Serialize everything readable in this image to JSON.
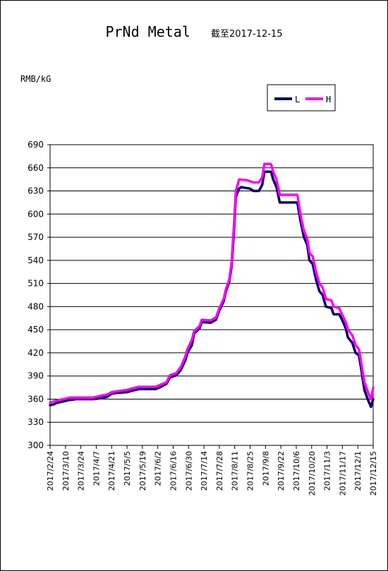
{
  "chart_data": {
    "type": "line",
    "title": "PrNd Metal",
    "subtitle": "截至2017-12-15",
    "ylabel": "RMB/kG",
    "ylim": [
      300,
      690
    ],
    "yticks": [
      300,
      330,
      360,
      390,
      420,
      450,
      480,
      510,
      540,
      570,
      600,
      630,
      660,
      690
    ],
    "xlim": [
      "2017-02-24",
      "2017-12-15"
    ],
    "xticks": [
      "2017/2/24",
      "2017/3/10",
      "2017/3/24",
      "2017/4/7",
      "2017/4/21",
      "2017/5/5",
      "2017/5/19",
      "2017/6/2",
      "2017/6/16",
      "2017/6/30",
      "2017/7/14",
      "2017/7/28",
      "2017/8/11",
      "2017/8/25",
      "2017/9/8",
      "2017/9/22",
      "2017/10/6",
      "2017/10/20",
      "2017/11/3",
      "2017/11/17",
      "2017/12/1",
      "2017/12/15"
    ],
    "grid": true,
    "legend_position": "top-right",
    "series": [
      {
        "name": "L",
        "color": "#000066",
        "points": [
          [
            "2017-02-24",
            352
          ],
          [
            "2017-02-27",
            353
          ],
          [
            "2017-03-02",
            355
          ],
          [
            "2017-03-08",
            357
          ],
          [
            "2017-03-14",
            359
          ],
          [
            "2017-03-20",
            360
          ],
          [
            "2017-04-04",
            360
          ],
          [
            "2017-04-10",
            361
          ],
          [
            "2017-04-17",
            363
          ],
          [
            "2017-04-21",
            367
          ],
          [
            "2017-04-25",
            368
          ],
          [
            "2017-05-05",
            369
          ],
          [
            "2017-05-10",
            371
          ],
          [
            "2017-05-16",
            373
          ],
          [
            "2017-05-31",
            373
          ],
          [
            "2017-06-05",
            376
          ],
          [
            "2017-06-10",
            380
          ],
          [
            "2017-06-13",
            388
          ],
          [
            "2017-06-19",
            391
          ],
          [
            "2017-06-23",
            398
          ],
          [
            "2017-06-27",
            410
          ],
          [
            "2017-06-29",
            420
          ],
          [
            "2017-07-03",
            430
          ],
          [
            "2017-07-05",
            445
          ],
          [
            "2017-07-10",
            452
          ],
          [
            "2017-07-12",
            460
          ],
          [
            "2017-07-20",
            459
          ],
          [
            "2017-07-25",
            463
          ],
          [
            "2017-07-28",
            475
          ],
          [
            "2017-08-01",
            487
          ],
          [
            "2017-08-03",
            500
          ],
          [
            "2017-08-06",
            512
          ],
          [
            "2017-08-08",
            530
          ],
          [
            "2017-08-10",
            570
          ],
          [
            "2017-08-12",
            622
          ],
          [
            "2017-08-15",
            633
          ],
          [
            "2017-08-17",
            635
          ],
          [
            "2017-08-25",
            633
          ],
          [
            "2017-08-28",
            630
          ],
          [
            "2017-09-02",
            630
          ],
          [
            "2017-09-05",
            638
          ],
          [
            "2017-09-07",
            655
          ],
          [
            "2017-09-13",
            655
          ],
          [
            "2017-09-15",
            645
          ],
          [
            "2017-09-18",
            635
          ],
          [
            "2017-09-21",
            615
          ],
          [
            "2017-10-07",
            615
          ],
          [
            "2017-10-10",
            590
          ],
          [
            "2017-10-13",
            570
          ],
          [
            "2017-10-16",
            560
          ],
          [
            "2017-10-18",
            540
          ],
          [
            "2017-10-21",
            535
          ],
          [
            "2017-10-24",
            515
          ],
          [
            "2017-10-27",
            500
          ],
          [
            "2017-10-30",
            495
          ],
          [
            "2017-11-02",
            480
          ],
          [
            "2017-11-07",
            478
          ],
          [
            "2017-11-09",
            470
          ],
          [
            "2017-11-14",
            470
          ],
          [
            "2017-11-16",
            465
          ],
          [
            "2017-11-20",
            452
          ],
          [
            "2017-11-22",
            440
          ],
          [
            "2017-11-26",
            433
          ],
          [
            "2017-11-29",
            420
          ],
          [
            "2017-12-02",
            417
          ],
          [
            "2017-12-04",
            400
          ],
          [
            "2017-12-07",
            372
          ],
          [
            "2017-12-10",
            360
          ],
          [
            "2017-12-13",
            350
          ],
          [
            "2017-12-15",
            360
          ]
        ]
      },
      {
        "name": "H",
        "color": "#ff00ff",
        "points": [
          [
            "2017-02-24",
            355
          ],
          [
            "2017-02-27",
            357
          ],
          [
            "2017-03-02",
            358
          ],
          [
            "2017-03-08",
            360
          ],
          [
            "2017-03-14",
            362
          ],
          [
            "2017-03-20",
            362
          ],
          [
            "2017-04-04",
            362
          ],
          [
            "2017-04-10",
            364
          ],
          [
            "2017-04-17",
            366
          ],
          [
            "2017-04-21",
            369
          ],
          [
            "2017-04-25",
            370
          ],
          [
            "2017-05-05",
            372
          ],
          [
            "2017-05-10",
            374
          ],
          [
            "2017-05-16",
            376
          ],
          [
            "2017-05-31",
            376
          ],
          [
            "2017-06-05",
            379
          ],
          [
            "2017-06-10",
            382
          ],
          [
            "2017-06-13",
            391
          ],
          [
            "2017-06-19",
            394
          ],
          [
            "2017-06-23",
            402
          ],
          [
            "2017-06-27",
            415
          ],
          [
            "2017-06-29",
            425
          ],
          [
            "2017-07-03",
            437
          ],
          [
            "2017-07-05",
            448
          ],
          [
            "2017-07-10",
            455
          ],
          [
            "2017-07-12",
            463
          ],
          [
            "2017-07-20",
            462
          ],
          [
            "2017-07-25",
            466
          ],
          [
            "2017-07-28",
            478
          ],
          [
            "2017-08-01",
            490
          ],
          [
            "2017-08-03",
            503
          ],
          [
            "2017-08-06",
            515
          ],
          [
            "2017-08-08",
            535
          ],
          [
            "2017-08-10",
            578
          ],
          [
            "2017-08-12",
            630
          ],
          [
            "2017-08-15",
            645
          ],
          [
            "2017-08-22",
            644
          ],
          [
            "2017-08-28",
            641
          ],
          [
            "2017-09-02",
            641
          ],
          [
            "2017-09-05",
            648
          ],
          [
            "2017-09-07",
            665
          ],
          [
            "2017-09-13",
            665
          ],
          [
            "2017-09-15",
            655
          ],
          [
            "2017-09-18",
            645
          ],
          [
            "2017-09-21",
            625
          ],
          [
            "2017-10-07",
            625
          ],
          [
            "2017-10-10",
            598
          ],
          [
            "2017-10-13",
            578
          ],
          [
            "2017-10-16",
            568
          ],
          [
            "2017-10-18",
            550
          ],
          [
            "2017-10-21",
            545
          ],
          [
            "2017-10-24",
            525
          ],
          [
            "2017-10-27",
            510
          ],
          [
            "2017-10-30",
            505
          ],
          [
            "2017-11-02",
            490
          ],
          [
            "2017-11-07",
            488
          ],
          [
            "2017-11-09",
            480
          ],
          [
            "2017-11-14",
            478
          ],
          [
            "2017-11-16",
            472
          ],
          [
            "2017-11-20",
            460
          ],
          [
            "2017-11-22",
            450
          ],
          [
            "2017-11-26",
            443
          ],
          [
            "2017-11-29",
            430
          ],
          [
            "2017-12-02",
            425
          ],
          [
            "2017-12-04",
            408
          ],
          [
            "2017-12-07",
            382
          ],
          [
            "2017-12-10",
            370
          ],
          [
            "2017-12-13",
            360
          ],
          [
            "2017-12-15",
            375
          ]
        ]
      }
    ]
  }
}
